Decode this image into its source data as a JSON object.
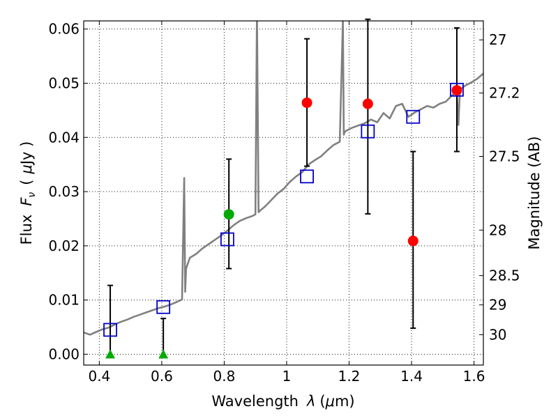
{
  "chart_data": {
    "type": "scatter",
    "title": "",
    "xlabel": "Wavelength",
    "xlabel_symbol": "λ",
    "xlabel_unit_open": "(",
    "xlabel_unit_mu": "μ",
    "xlabel_unit_rest": "m)",
    "ylabel": "Flux",
    "ylabel_symbol": "F",
    "ylabel_subscript": "ν",
    "ylabel_unit_open": "(",
    "ylabel_unit_mu": "μ",
    "ylabel_unit_rest": "Jy )",
    "y2label": "Magnitude (AB)",
    "xlim": [
      0.35,
      1.63
    ],
    "ylim": [
      -0.002,
      0.0615
    ],
    "grid": true,
    "x_ticks": [
      0.4,
      0.6,
      0.8,
      1.0,
      1.2,
      1.4,
      1.6
    ],
    "x_tick_labels": [
      "0.4",
      "0.6",
      "0.8",
      "1",
      "1.2",
      "1.4",
      "1.6"
    ],
    "y_ticks": [
      0.0,
      0.01,
      0.02,
      0.03,
      0.04,
      0.05,
      0.06
    ],
    "y_tick_labels": [
      "0.00",
      "0.01",
      "0.02",
      "0.03",
      "0.04",
      "0.05",
      "0.06"
    ],
    "right_ticks": [
      {
        "label": "27",
        "flux": 0.058
      },
      {
        "label": "27.2",
        "flux": 0.0482
      },
      {
        "label": "27.5",
        "flux": 0.0365
      },
      {
        "label": "28",
        "flux": 0.0229
      },
      {
        "label": "28.5",
        "flux": 0.0145
      },
      {
        "label": "29",
        "flux": 0.0091
      },
      {
        "label": "30",
        "flux": 0.0036
      }
    ],
    "series": [
      {
        "kind": "model_spectrum",
        "color": "#808080",
        "x": [
          0.35,
          0.37,
          0.39,
          0.41,
          0.43,
          0.45,
          0.47,
          0.49,
          0.51,
          0.53,
          0.55,
          0.57,
          0.59,
          0.61,
          0.63,
          0.65,
          0.665,
          0.672,
          0.675,
          0.678,
          0.69,
          0.71,
          0.73,
          0.75,
          0.77,
          0.79,
          0.81,
          0.83,
          0.85,
          0.87,
          0.89,
          0.9,
          0.905,
          0.91,
          0.915,
          0.93,
          0.95,
          0.97,
          0.99,
          1.01,
          1.03,
          1.05,
          1.07,
          1.09,
          1.11,
          1.13,
          1.15,
          1.17,
          1.18,
          1.183,
          1.186,
          1.19,
          1.21,
          1.23,
          1.25,
          1.27,
          1.29,
          1.31,
          1.33,
          1.35,
          1.37,
          1.39,
          1.41,
          1.43,
          1.45,
          1.47,
          1.49,
          1.51,
          1.53,
          1.545,
          1.55,
          1.555,
          1.57,
          1.59,
          1.61,
          1.63
        ],
        "y": [
          0.004,
          0.0036,
          0.0041,
          0.0046,
          0.0049,
          0.0055,
          0.006,
          0.0064,
          0.0069,
          0.0073,
          0.0077,
          0.0081,
          0.0085,
          0.0088,
          0.0092,
          0.0097,
          0.0101,
          0.0325,
          0.0115,
          0.0158,
          0.0178,
          0.0185,
          0.0195,
          0.0203,
          0.0211,
          0.0219,
          0.0228,
          0.0238,
          0.0246,
          0.0251,
          0.0255,
          0.0258,
          0.0635,
          0.0262,
          0.0265,
          0.0272,
          0.0284,
          0.0296,
          0.0305,
          0.0318,
          0.0328,
          0.0336,
          0.035,
          0.0358,
          0.0365,
          0.0376,
          0.0386,
          0.0392,
          0.0615,
          0.0405,
          0.041,
          0.0412,
          0.0418,
          0.0422,
          0.0426,
          0.0433,
          0.0428,
          0.0445,
          0.0435,
          0.0458,
          0.0462,
          0.0438,
          0.0446,
          0.0452,
          0.0458,
          0.0455,
          0.0462,
          0.0466,
          0.0478,
          0.0482,
          0.0423,
          0.0488,
          0.0495,
          0.0501,
          0.0508,
          0.0518
        ]
      },
      {
        "kind": "model_photometry",
        "marker": "open-square",
        "color": "#0000cc",
        "x": [
          0.435,
          0.605,
          0.81,
          1.065,
          1.26,
          1.405,
          1.545
        ],
        "y": [
          0.0045,
          0.0087,
          0.0212,
          0.0328,
          0.0411,
          0.0438,
          0.0488
        ]
      },
      {
        "kind": "observed_detections",
        "marker": "filled-circle",
        "color": "#ff0000",
        "x": [
          1.065,
          1.26,
          1.405,
          1.545
        ],
        "y": [
          0.0464,
          0.0462,
          0.0209,
          0.0487
        ],
        "err_low": [
          0.0117,
          0.0203,
          0.0161,
          0.0113
        ],
        "err_high": [
          0.0118,
          0.0156,
          0.0165,
          0.0115
        ]
      },
      {
        "kind": "observed_detection_optical",
        "marker": "filled-circle",
        "color": "#00aa00",
        "x": [
          0.815
        ],
        "y": [
          0.0258
        ],
        "err_low": [
          0.01
        ],
        "err_high": [
          0.0102
        ]
      },
      {
        "kind": "observed_nondetections",
        "marker": "filled-triangle",
        "color": "#00aa00",
        "x": [
          0.435,
          0.605
        ],
        "y": [
          0.0,
          0.0
        ],
        "err_low": [
          0.0,
          0.0
        ],
        "err_high": [
          0.0127,
          0.0066
        ]
      }
    ]
  }
}
